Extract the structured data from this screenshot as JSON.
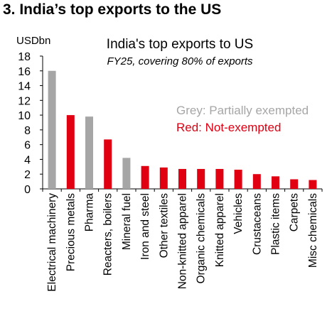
{
  "section_title": "3. India’s top exports to the US",
  "chart_data": {
    "type": "bar",
    "title": "India's top exports to US",
    "subtitle": "FY25, covering 80% of exports",
    "ylabel": "USDbn",
    "xlabel": "",
    "ylim": [
      0,
      18
    ],
    "yticks": [
      0,
      2,
      4,
      6,
      8,
      10,
      12,
      14,
      16,
      18
    ],
    "categories": [
      "Electrical machinery",
      "Precious metals",
      "Pharma",
      "Reacters, boilers",
      "Mineral fuel",
      "Iron and steel",
      "Other textiles",
      "Non-knitted apparel",
      "Organic chemicals",
      "Knitted apparel",
      "Vehicles",
      "Crustaceans",
      "Plastic items",
      "Carpets",
      "Misc chemicals"
    ],
    "values": [
      16.0,
      10.0,
      9.8,
      6.7,
      4.2,
      3.1,
      2.9,
      2.7,
      2.7,
      2.7,
      2.6,
      2.0,
      1.7,
      1.3,
      1.2
    ],
    "status": [
      "grey",
      "red",
      "grey",
      "red",
      "grey",
      "red",
      "red",
      "red",
      "red",
      "red",
      "red",
      "red",
      "red",
      "red",
      "red"
    ],
    "annotations": {
      "grey": "Grey: Partially exempted",
      "red": "Red: Not-exempted"
    },
    "colors": {
      "grey": "#a6a6a6",
      "red": "#e00012",
      "axis": "#000000"
    },
    "grid": false
  }
}
